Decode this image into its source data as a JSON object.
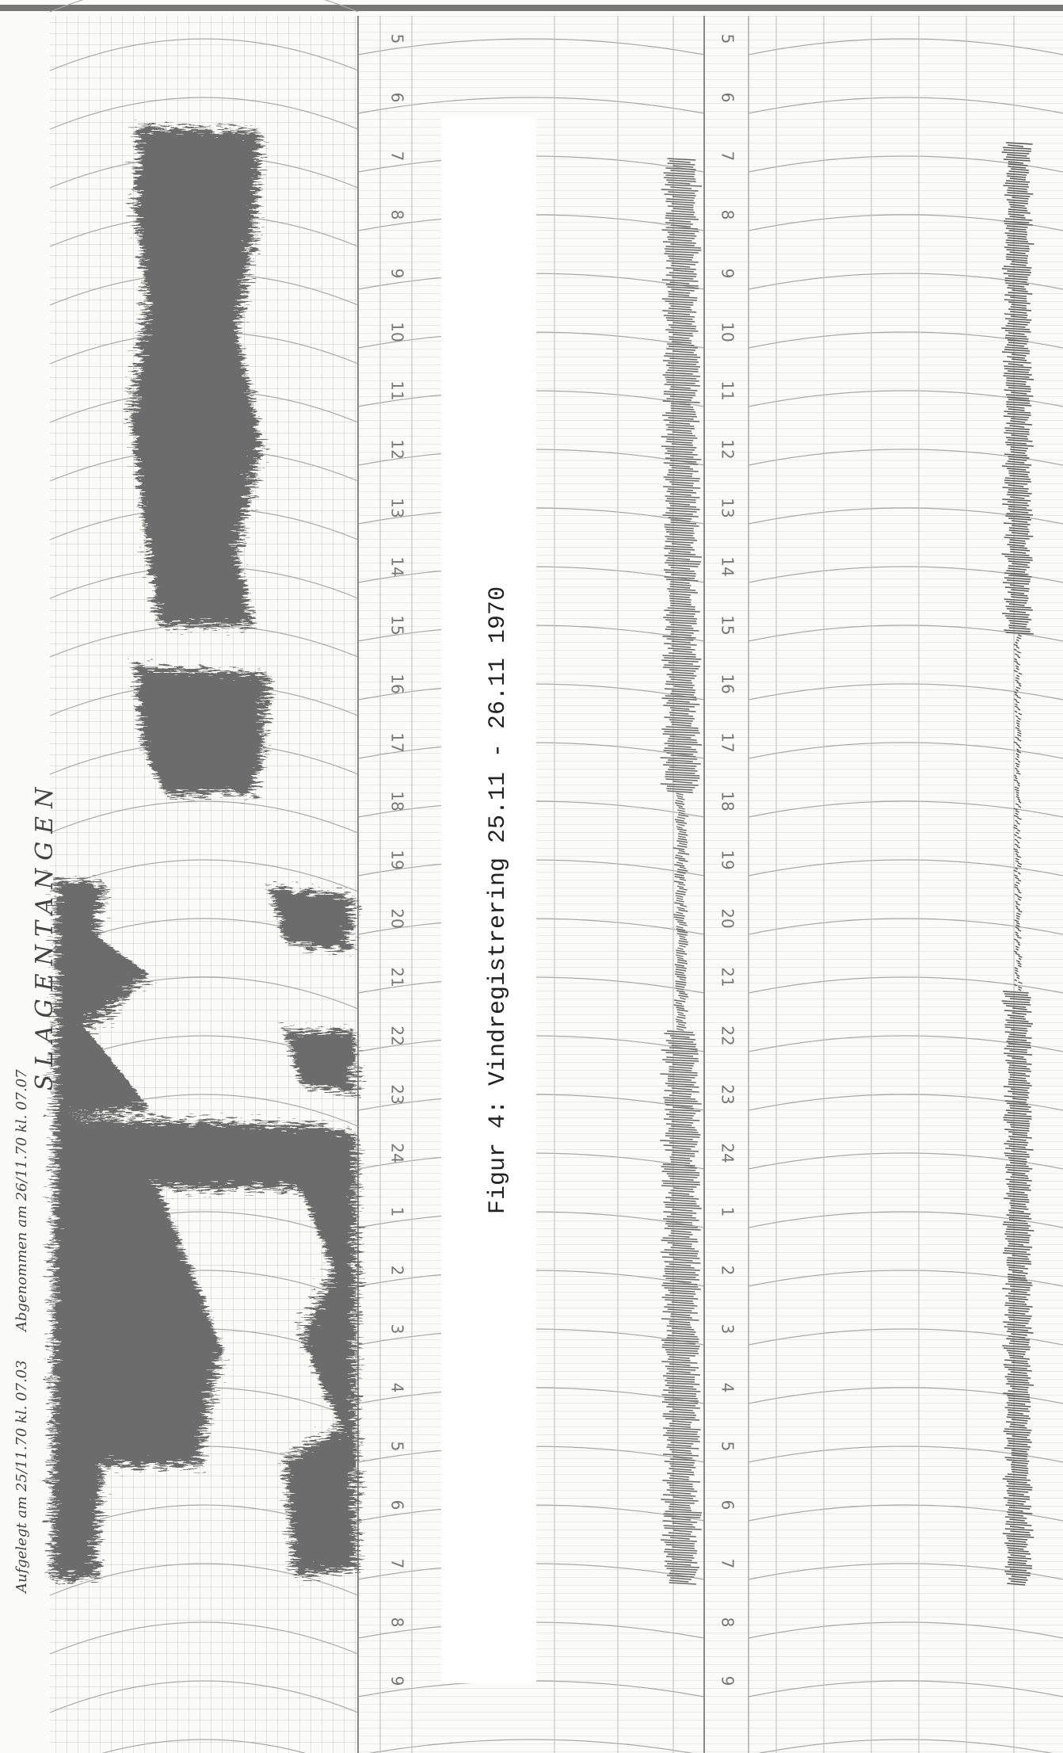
{
  "caption": "Figur 4:  Vindregistrering 25.11 - 26.11 1970",
  "station": "SLAGENTANGEN",
  "mounted": "Aufgelegt am 25/11.70 kl. 07.03",
  "removed": "Abgenommen am 26/11.70 kl. 07.07",
  "hour_labels": [
    "5",
    "6",
    "7",
    "8",
    "9",
    "10",
    "11",
    "12",
    "13",
    "14",
    "15",
    "16",
    "17",
    "18",
    "19",
    "20",
    "21",
    "22",
    "23",
    "24",
    "1",
    "2",
    "3",
    "4",
    "5",
    "6",
    "7",
    "8",
    "9"
  ]
}
